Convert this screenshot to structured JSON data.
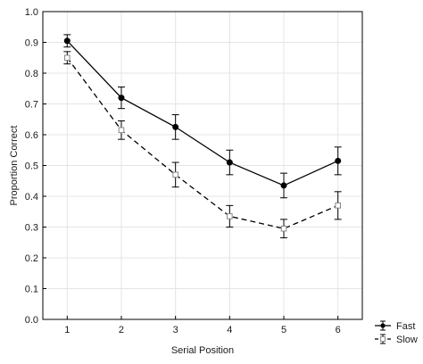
{
  "chart_data": {
    "type": "line",
    "xlabel": "Serial Position",
    "ylabel": "Proportion Correct",
    "x": [
      1,
      2,
      3,
      4,
      5,
      6
    ],
    "xlim": [
      0.55,
      6.45
    ],
    "ylim": [
      0,
      1.0
    ],
    "yticks": [
      "0.0",
      "0.1",
      "0.2",
      "0.3",
      "0.4",
      "0.5",
      "0.6",
      "0.7",
      "0.8",
      "0.9",
      "1.0"
    ],
    "xticks": [
      "1",
      "2",
      "3",
      "4",
      "5",
      "6"
    ],
    "grid": true,
    "legend_position": "bottom-right outside",
    "series": [
      {
        "name": "Fast",
        "values": [
          0.905,
          0.72,
          0.625,
          0.51,
          0.435,
          0.515
        ],
        "error": [
          0.02,
          0.035,
          0.04,
          0.04,
          0.04,
          0.045
        ],
        "marker": "filled-circle",
        "line": "solid",
        "color": "#000000"
      },
      {
        "name": "Slow",
        "values": [
          0.85,
          0.615,
          0.47,
          0.335,
          0.295,
          0.37
        ],
        "error": [
          0.02,
          0.03,
          0.04,
          0.035,
          0.03,
          0.045
        ],
        "marker": "open-square",
        "line": "dashed",
        "color": "#000000"
      }
    ]
  }
}
